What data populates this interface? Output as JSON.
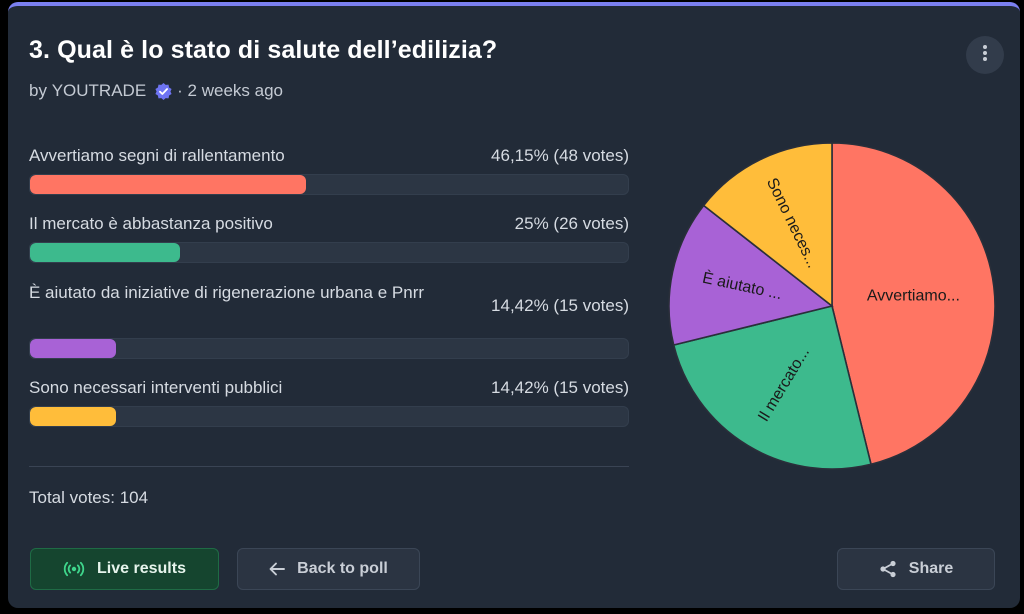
{
  "poll": {
    "title": "3. Qual è lo stato di salute dell’edilizia?",
    "author_prefix": "by",
    "author": "YOUTRADE",
    "age": "· 2 weeks ago",
    "verified_icon": "verified-badge-icon",
    "menu_icon": "more-vertical-icon"
  },
  "options": [
    {
      "label": "Avvertiamo segni di rallentamento",
      "value_text": "46,15% (48 votes)",
      "percent": 46.15,
      "votes": 48,
      "color": "#ff7563",
      "pie_label": "Avvertiamo..."
    },
    {
      "label": "Il mercato è abbastanza positivo",
      "value_text": "25% (26 votes)",
      "percent": 25,
      "votes": 26,
      "color": "#3dba8d",
      "pie_label": "Il mercato..."
    },
    {
      "label": "È aiutato da iniziative di rigenerazione urbana e Pnrr",
      "value_text": "14,42% (15 votes)",
      "percent": 14.42,
      "votes": 15,
      "color": "#a862d6",
      "pie_label": "È aiutato ..."
    },
    {
      "label": "Sono necessari interventi pubblici",
      "value_text": "14,42% (15 votes)",
      "percent": 14.42,
      "votes": 15,
      "color": "#ffbd3a",
      "pie_label": "Sono neces..."
    }
  ],
  "total": "Total votes: 104",
  "buttons": {
    "live": "Live results",
    "back": "Back to poll",
    "share": "Share"
  },
  "chart_data": {
    "type": "pie",
    "categories": [
      "Avvertiamo...",
      "Il mercato...",
      "È aiutato ...",
      "Sono neces..."
    ],
    "values": [
      48,
      26,
      15,
      15
    ],
    "colors": [
      "#ff7563",
      "#3dba8d",
      "#a862d6",
      "#ffbd3a"
    ]
  }
}
